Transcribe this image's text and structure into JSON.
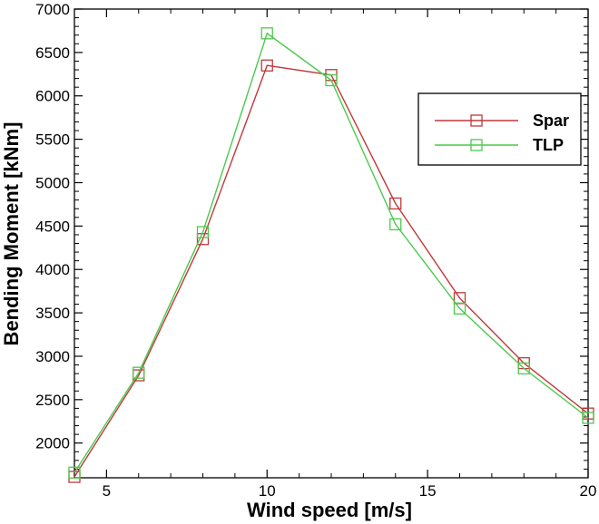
{
  "chart_data": {
    "type": "line",
    "title": "",
    "xlabel": "Wind speed [m/s]",
    "ylabel": "Bending Moment [kNm]",
    "xlim": [
      4,
      20
    ],
    "ylim": [
      1600,
      7000
    ],
    "xticks": [
      5,
      10,
      15,
      20
    ],
    "yticks": [
      2000,
      2500,
      3000,
      3500,
      4000,
      4500,
      5000,
      5500,
      6000,
      6500,
      7000
    ],
    "grid": false,
    "legend_position": "upper-right",
    "series": [
      {
        "name": "Spar",
        "color": "#c0393b",
        "marker": "open-square",
        "x": [
          4,
          6,
          8,
          10,
          12,
          14,
          16,
          18,
          20
        ],
        "y": [
          1610,
          2780,
          4350,
          6350,
          6240,
          4760,
          3670,
          2920,
          2340
        ]
      },
      {
        "name": "TLP",
        "color": "#4cc94c",
        "marker": "open-square",
        "x": [
          4,
          6,
          8,
          10,
          12,
          14,
          16,
          18,
          20
        ],
        "y": [
          1660,
          2810,
          4430,
          6720,
          6180,
          4520,
          3550,
          2860,
          2290
        ]
      }
    ]
  }
}
